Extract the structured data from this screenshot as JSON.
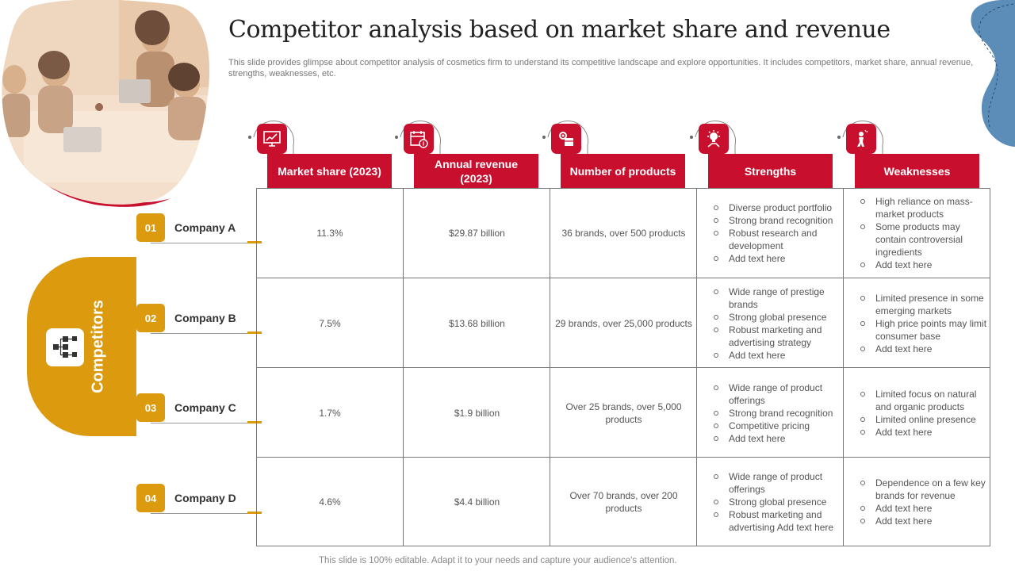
{
  "title": "Competitor analysis based on market share and revenue",
  "subtitle": "This slide provides glimpse about competitor analysis of cosmetics firm to understand its competitive landscape and explore opportunities. It includes competitors, market share, annual revenue, strengths, weaknesses, etc.",
  "footer": "This slide is 100% editable. Adapt it to your needs and capture your audience's attention.",
  "competitors_label": "Competitors",
  "colors": {
    "red": "#C8102E",
    "gold": "#DC9A0E",
    "blue": "#5B8DB8"
  },
  "headers": [
    {
      "label": "Market share (2023)",
      "icon": "chart-presentation-icon"
    },
    {
      "label": "Annual revenue (2023)",
      "icon": "calendar-money-icon"
    },
    {
      "label": "Number of products",
      "icon": "box-gear-icon"
    },
    {
      "label": "Strengths",
      "icon": "lightbulb-hand-icon"
    },
    {
      "label": "Weaknesses",
      "icon": "stressed-person-icon"
    }
  ],
  "companies": [
    {
      "num": "01",
      "name": "Company A",
      "market_share": "11.3%",
      "revenue": "$29.87 billion",
      "products": "36 brands, over 500 products",
      "strengths": [
        "Diverse product portfolio",
        "Strong brand recognition",
        "Robust research and development",
        "Add text here"
      ],
      "weaknesses": [
        "High reliance on mass-market products",
        "Some products may contain controversial ingredients",
        "Add text here"
      ]
    },
    {
      "num": "02",
      "name": "Company B",
      "market_share": "7.5%",
      "revenue": "$13.68 billion",
      "products": "29 brands, over 25,000 products",
      "strengths": [
        "Wide range of prestige brands",
        "Strong global presence",
        "Robust marketing and advertising strategy",
        "Add text here"
      ],
      "weaknesses": [
        "Limited presence in some emerging markets",
        "High price points may limit consumer base",
        "Add text here"
      ]
    },
    {
      "num": "03",
      "name": "Company C",
      "market_share": "1.7%",
      "revenue": "$1.9 billion",
      "products": "Over 25 brands, over 5,000 products",
      "strengths": [
        "Wide range of product offerings",
        "Strong brand recognition",
        "Competitive pricing",
        "Add text here"
      ],
      "weaknesses": [
        "Limited focus on natural and organic products",
        "Limited online presence",
        "Add text here"
      ]
    },
    {
      "num": "04",
      "name": "Company D",
      "market_share": "4.6%",
      "revenue": "$4.4 billion",
      "products": "Over 70 brands, over 200 products",
      "strengths": [
        "Wide range of product offerings",
        "Strong global presence",
        "Robust marketing and advertising Add text here"
      ],
      "weaknesses": [
        "Dependence on a few key brands for revenue",
        "Add text here",
        "Add text here"
      ]
    }
  ]
}
